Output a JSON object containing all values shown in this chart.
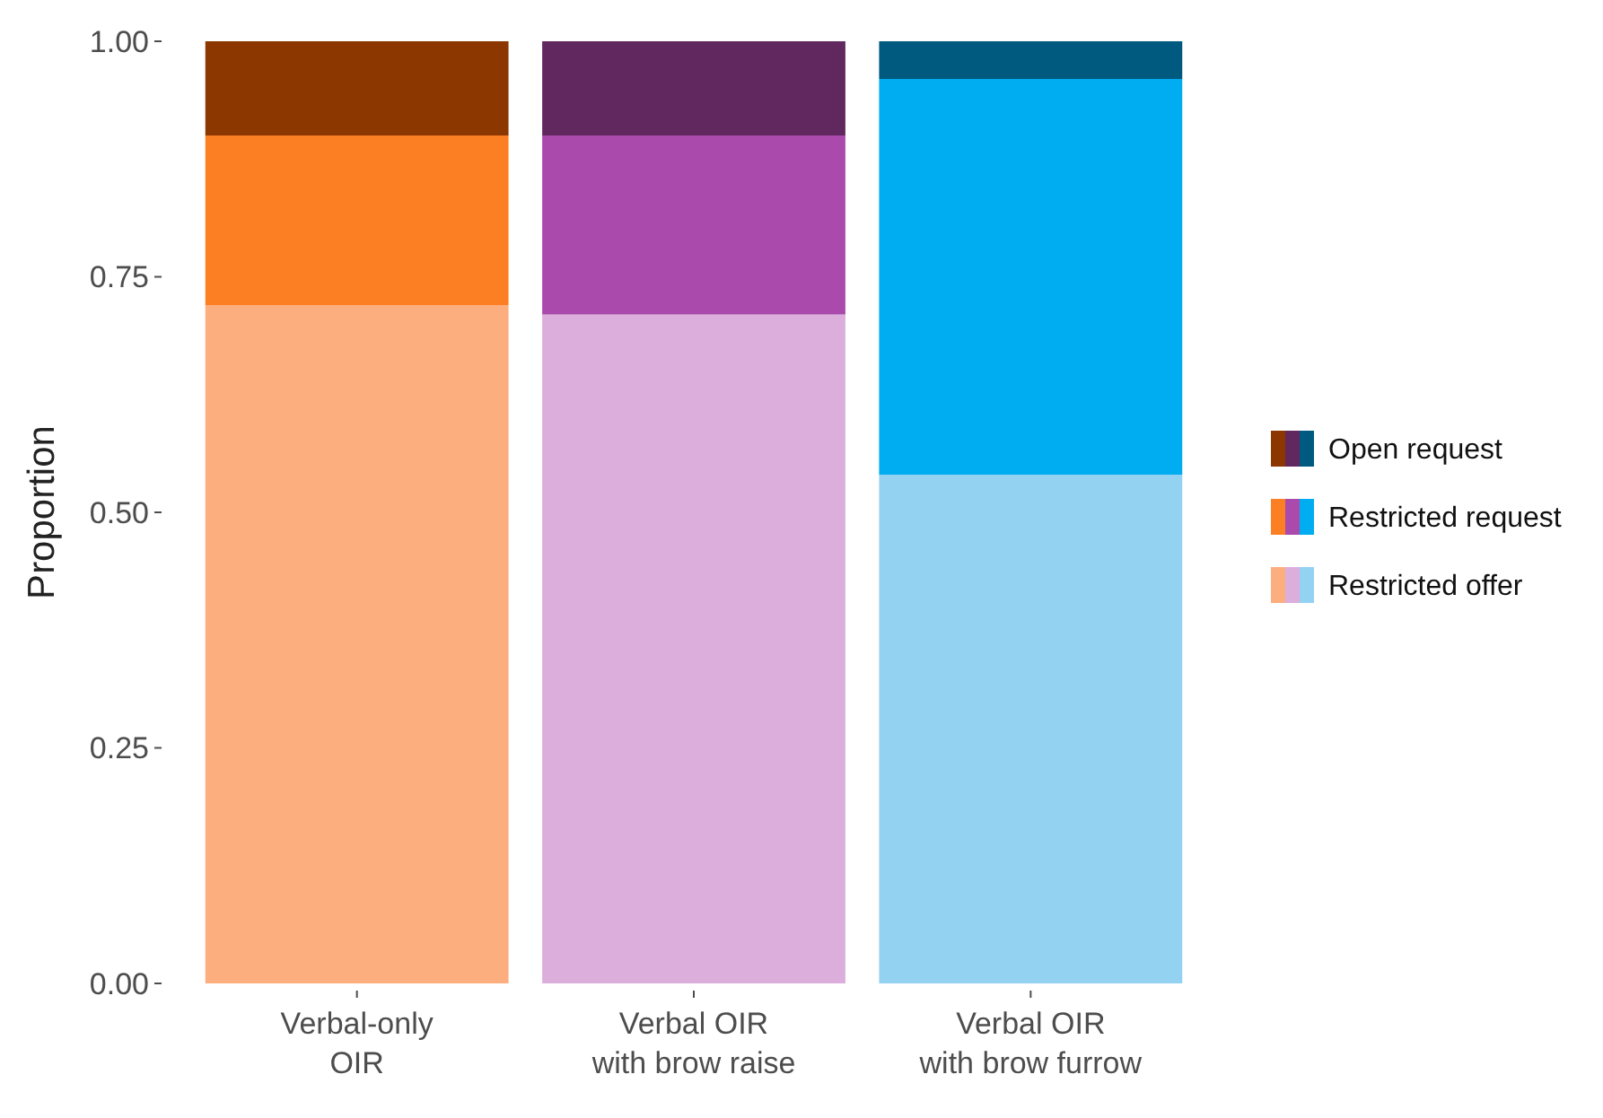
{
  "chart_data": {
    "type": "bar",
    "stacked": true,
    "ylabel": "Proportion",
    "categories": [
      "Verbal-only\nOIR",
      "Verbal OIR\nwith brow raise",
      "Verbal OIR\nwith brow furrow"
    ],
    "ylim": [
      0,
      1
    ],
    "yticks": [
      {
        "value": 0,
        "label": "0.00"
      },
      {
        "value": 0.25,
        "label": "0.25"
      },
      {
        "value": 0.5,
        "label": "0.50"
      },
      {
        "value": 0.75,
        "label": "0.75"
      },
      {
        "value": 1,
        "label": "1.00"
      }
    ],
    "grid": false,
    "legend": "right",
    "series": [
      {
        "name": "Restricted offer",
        "colors": [
          "#fdae7e",
          "#dbaedc",
          "#94d2f1"
        ],
        "values": [
          0.72,
          0.71,
          0.54
        ]
      },
      {
        "name": "Restricted request",
        "colors": [
          "#fd7f24",
          "#aa4aad",
          "#00adf0"
        ],
        "values": [
          0.18,
          0.19,
          0.42
        ]
      },
      {
        "name": "Open request",
        "colors": [
          "#8c3700",
          "#60285e",
          "#005a80"
        ],
        "values": [
          0.1,
          0.1,
          0.04
        ]
      }
    ]
  }
}
